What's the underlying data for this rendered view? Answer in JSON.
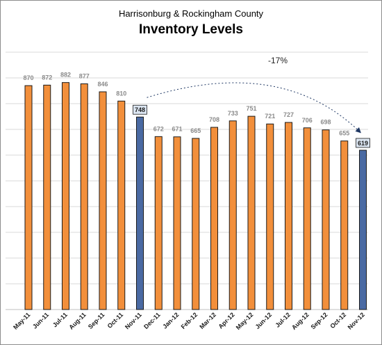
{
  "chart_data": {
    "type": "bar",
    "subtitle": "Harrisonburg & Rockingham County",
    "title": "Inventory Levels",
    "categories": [
      "May-11",
      "Jun-11",
      "Jul-11",
      "Aug-11",
      "Sep-11",
      "Oct-11",
      "Nov-11",
      "Dec-11",
      "Jan-12",
      "Feb-12",
      "Mar-12",
      "Apr-12",
      "May-12",
      "Jun-12",
      "Jul-12",
      "Aug-12",
      "Sep-12",
      "Oct-12",
      "Nov-12"
    ],
    "values": [
      870,
      872,
      882,
      877,
      846,
      810,
      748,
      672,
      671,
      665,
      708,
      733,
      751,
      721,
      727,
      706,
      698,
      655,
      619
    ],
    "highlighted": [
      "Nov-11",
      "Nov-12"
    ],
    "ylim": [
      0,
      1000
    ],
    "grid": true,
    "annotation": {
      "text": "-17%",
      "from": "Nov-11",
      "to": "Nov-12"
    },
    "colors": {
      "bar": "#f28f3b",
      "highlight": "#4a6aa3",
      "highlight_label_bg": "#dce6f2"
    }
  }
}
